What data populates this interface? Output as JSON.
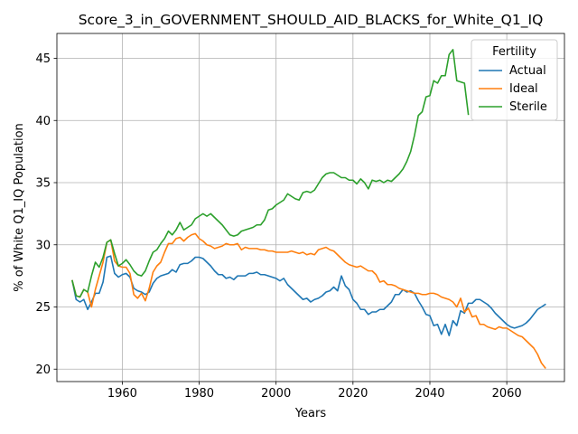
{
  "chart_data": {
    "type": "line",
    "title": "Score_3_in_GOVERNMENT_SHOULD_AID_BLACKS_for_White_Q1_IQ",
    "xlabel": "Years",
    "ylabel": "% of White Q1_IQ Population",
    "xlim": [
      1943,
      2075
    ],
    "ylim": [
      19,
      47
    ],
    "xticks": [
      1960,
      1980,
      2000,
      2020,
      2040,
      2060
    ],
    "yticks": [
      20,
      25,
      30,
      35,
      40,
      45
    ],
    "grid": true,
    "legend": {
      "title": "Fertility",
      "placement": "top-right"
    },
    "series": [
      {
        "name": "Actual",
        "color": "#1f77b4",
        "x": [
          1947,
          1948,
          1949,
          1950,
          1951,
          1952,
          1953,
          1954,
          1955,
          1956,
          1957,
          1958,
          1959,
          1960,
          1961,
          1962,
          1963,
          1964,
          1965,
          1966,
          1967,
          1968,
          1969,
          1970,
          1971,
          1972,
          1973,
          1974,
          1975,
          1976,
          1977,
          1978,
          1979,
          1980,
          1981,
          1982,
          1983,
          1984,
          1985,
          1986,
          1987,
          1988,
          1989,
          1990,
          1991,
          1992,
          1993,
          1994,
          1995,
          1996,
          1997,
          1998,
          1999,
          2000,
          2001,
          2002,
          2003,
          2004,
          2005,
          2006,
          2007,
          2008,
          2009,
          2010,
          2011,
          2012,
          2013,
          2014,
          2015,
          2016,
          2017,
          2018,
          2019,
          2020,
          2021,
          2022,
          2023,
          2024,
          2025,
          2026,
          2027,
          2028,
          2029,
          2030,
          2031,
          2032,
          2033,
          2034,
          2035,
          2036,
          2037,
          2038,
          2039,
          2040,
          2041,
          2042,
          2043,
          2044,
          2045,
          2046,
          2047,
          2048,
          2049,
          2050,
          2051,
          2052,
          2053,
          2054,
          2055,
          2056,
          2057,
          2058,
          2059,
          2060,
          2061,
          2062,
          2063,
          2064,
          2065,
          2066,
          2067,
          2068,
          2069,
          2070
        ],
        "values": [
          27.1,
          25.6,
          25.4,
          25.6,
          24.8,
          25.4,
          26.1,
          26.1,
          27.0,
          29.0,
          29.1,
          27.7,
          27.4,
          27.6,
          27.7,
          27.4,
          26.5,
          26.3,
          26.2,
          26.0,
          26.2,
          26.9,
          27.3,
          27.5,
          27.6,
          27.7,
          28.0,
          27.8,
          28.4,
          28.5,
          28.5,
          28.7,
          29.0,
          29.0,
          28.9,
          28.6,
          28.3,
          27.9,
          27.6,
          27.6,
          27.3,
          27.4,
          27.2,
          27.5,
          27.5,
          27.5,
          27.7,
          27.7,
          27.8,
          27.6,
          27.6,
          27.5,
          27.4,
          27.3,
          27.1,
          27.3,
          26.8,
          26.5,
          26.2,
          25.9,
          25.6,
          25.7,
          25.4,
          25.6,
          25.7,
          25.9,
          26.2,
          26.3,
          26.6,
          26.3,
          27.5,
          26.7,
          26.4,
          25.6,
          25.3,
          24.8,
          24.8,
          24.4,
          24.6,
          24.6,
          24.8,
          24.8,
          25.1,
          25.4,
          26.0,
          26.0,
          26.4,
          26.2,
          26.3,
          26.1,
          25.5,
          25.0,
          24.4,
          24.3,
          23.5,
          23.6,
          22.8,
          23.6,
          22.7,
          23.9,
          23.5,
          24.7,
          24.5,
          25.3,
          25.3,
          25.6,
          25.6,
          25.4,
          25.2,
          24.9,
          24.5,
          24.2,
          23.9,
          23.6,
          23.4,
          23.3,
          23.4,
          23.5,
          23.7,
          24.0,
          24.4,
          24.8,
          25.0,
          25.2
        ]
      },
      {
        "name": "Ideal",
        "color": "#ff7f0e",
        "x": [
          1947,
          1948,
          1949,
          1950,
          1951,
          1952,
          1953,
          1954,
          1955,
          1956,
          1957,
          1958,
          1959,
          1960,
          1961,
          1962,
          1963,
          1964,
          1965,
          1966,
          1967,
          1968,
          1969,
          1970,
          1971,
          1972,
          1973,
          1974,
          1975,
          1976,
          1977,
          1978,
          1979,
          1980,
          1981,
          1982,
          1983,
          1984,
          1985,
          1986,
          1987,
          1988,
          1989,
          1990,
          1991,
          1992,
          1993,
          1994,
          1995,
          1996,
          1997,
          1998,
          1999,
          2000,
          2001,
          2002,
          2003,
          2004,
          2005,
          2006,
          2007,
          2008,
          2009,
          2010,
          2011,
          2012,
          2013,
          2014,
          2015,
          2016,
          2017,
          2018,
          2019,
          2020,
          2021,
          2022,
          2023,
          2024,
          2025,
          2026,
          2027,
          2028,
          2029,
          2030,
          2031,
          2032,
          2033,
          2034,
          2035,
          2036,
          2037,
          2038,
          2039,
          2040,
          2041,
          2042,
          2043,
          2044,
          2045,
          2046,
          2047,
          2048,
          2049,
          2050,
          2051,
          2052,
          2053,
          2054,
          2055,
          2056,
          2057,
          2058,
          2059,
          2060,
          2061,
          2062,
          2063,
          2064,
          2065,
          2066,
          2067,
          2068,
          2069,
          2070
        ],
        "values": [
          27.1,
          25.9,
          25.8,
          26.4,
          26.2,
          25.0,
          26.4,
          27.5,
          28.6,
          30.2,
          30.4,
          28.7,
          28.3,
          28.2,
          28.2,
          27.7,
          26.0,
          25.7,
          26.1,
          25.5,
          26.5,
          27.8,
          28.3,
          28.6,
          29.4,
          30.1,
          30.1,
          30.5,
          30.6,
          30.3,
          30.6,
          30.8,
          30.9,
          30.5,
          30.3,
          30.0,
          29.9,
          29.7,
          29.8,
          29.9,
          30.1,
          30.0,
          30.0,
          30.1,
          29.6,
          29.8,
          29.7,
          29.7,
          29.7,
          29.6,
          29.6,
          29.5,
          29.5,
          29.4,
          29.4,
          29.4,
          29.4,
          29.5,
          29.4,
          29.3,
          29.4,
          29.2,
          29.3,
          29.2,
          29.6,
          29.7,
          29.8,
          29.6,
          29.5,
          29.2,
          28.9,
          28.6,
          28.4,
          28.3,
          28.2,
          28.3,
          28.1,
          27.9,
          27.9,
          27.6,
          27.0,
          27.1,
          26.8,
          26.8,
          26.7,
          26.5,
          26.4,
          26.3,
          26.2,
          26.1,
          26.1,
          26.0,
          26.0,
          26.1,
          26.1,
          26.0,
          25.8,
          25.7,
          25.6,
          25.4,
          25.0,
          25.7,
          24.6,
          24.9,
          24.2,
          24.3,
          23.6,
          23.6,
          23.4,
          23.3,
          23.2,
          23.4,
          23.3,
          23.3,
          23.1,
          22.9,
          22.7,
          22.6,
          22.3,
          22.0,
          21.7,
          21.2,
          20.5,
          20.1
        ]
      },
      {
        "name": "Sterile",
        "color": "#2ca02c",
        "x": [
          1947,
          1948,
          1949,
          1950,
          1951,
          1952,
          1953,
          1954,
          1955,
          1956,
          1957,
          1958,
          1959,
          1960,
          1961,
          1962,
          1963,
          1964,
          1965,
          1966,
          1967,
          1968,
          1969,
          1970,
          1971,
          1972,
          1973,
          1974,
          1975,
          1976,
          1977,
          1978,
          1979,
          1980,
          1981,
          1982,
          1983,
          1984,
          1985,
          1986,
          1987,
          1988,
          1989,
          1990,
          1991,
          1992,
          1993,
          1994,
          1995,
          1996,
          1997,
          1998,
          1999,
          2000,
          2001,
          2002,
          2003,
          2004,
          2005,
          2006,
          2007,
          2008,
          2009,
          2010,
          2011,
          2012,
          2013,
          2014,
          2015,
          2016,
          2017,
          2018,
          2019,
          2020,
          2021,
          2022,
          2023,
          2024,
          2025,
          2026,
          2027,
          2028,
          2029,
          2030,
          2031,
          2032,
          2033,
          2034,
          2035,
          2036,
          2037,
          2038,
          2039,
          2040,
          2041,
          2042,
          2043,
          2044,
          2045,
          2046,
          2047,
          2048,
          2049,
          2050
        ],
        "values": [
          27.1,
          25.9,
          25.8,
          26.4,
          26.2,
          27.5,
          28.6,
          28.2,
          29.0,
          30.2,
          30.4,
          29.3,
          28.3,
          28.5,
          28.8,
          28.4,
          27.9,
          27.6,
          27.5,
          27.9,
          28.7,
          29.4,
          29.6,
          30.1,
          30.5,
          31.1,
          30.8,
          31.2,
          31.8,
          31.2,
          31.4,
          31.6,
          32.1,
          32.3,
          32.5,
          32.3,
          32.5,
          32.2,
          31.9,
          31.6,
          31.2,
          30.8,
          30.7,
          30.8,
          31.1,
          31.2,
          31.3,
          31.4,
          31.6,
          31.6,
          32.0,
          32.8,
          32.9,
          33.2,
          33.4,
          33.6,
          34.1,
          33.9,
          33.7,
          33.6,
          34.2,
          34.3,
          34.2,
          34.4,
          34.9,
          35.4,
          35.7,
          35.8,
          35.8,
          35.6,
          35.4,
          35.4,
          35.2,
          35.2,
          34.9,
          35.3,
          35.0,
          34.5,
          35.2,
          35.1,
          35.2,
          35.0,
          35.2,
          35.1,
          35.4,
          35.7,
          36.1,
          36.7,
          37.5,
          38.8,
          40.4,
          40.7,
          41.9,
          42.0,
          43.2,
          43.0,
          43.6,
          43.6,
          45.3,
          45.7,
          43.2,
          43.1,
          43.0,
          40.5
        ]
      }
    ]
  }
}
